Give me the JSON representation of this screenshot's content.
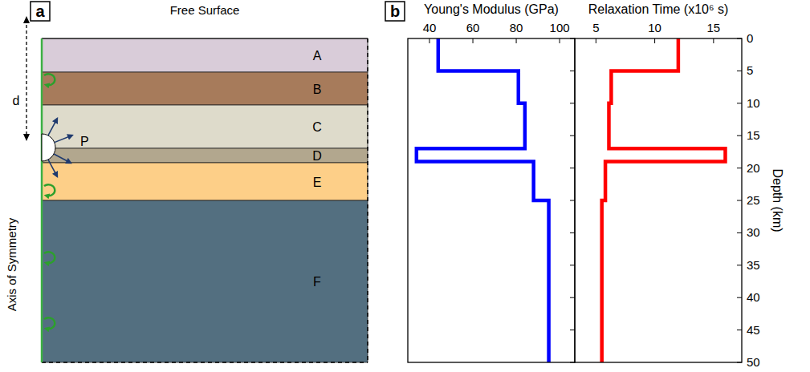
{
  "panel_labels": [
    "a",
    "b"
  ],
  "diagram": {
    "top_label": "Free Surface",
    "depth_label": "d",
    "source_label": "P",
    "axis_label": "Axis of Symmetry",
    "layers": [
      {
        "label": "A",
        "color": "#d9ccd9"
      },
      {
        "label": "B",
        "color": "#a77b5b"
      },
      {
        "label": "C",
        "color": "#dedbcb"
      },
      {
        "label": "D",
        "color": "#b2a78e"
      },
      {
        "label": "E",
        "color": "#fdcf88"
      },
      {
        "label": "F",
        "color": "#536f80"
      }
    ]
  },
  "chart_data": [
    {
      "type": "line",
      "xlabel": "Young's Modulus (GPa)",
      "x": [
        44,
        44,
        81,
        81,
        84,
        84,
        34,
        34,
        88,
        88,
        95,
        95
      ],
      "series": [
        {
          "color": "#0000ff",
          "values": [
            0,
            5,
            5,
            10,
            10,
            17,
            17,
            19,
            19,
            25,
            25,
            50
          ]
        }
      ],
      "xlim": [
        30,
        107
      ],
      "xticks": [
        40,
        60,
        80,
        100
      ],
      "ylim": [
        50,
        0
      ],
      "yticks": [
        0,
        5,
        10,
        15,
        20,
        25,
        30,
        35,
        40,
        45,
        50
      ],
      "tick_labels": "x"
    },
    {
      "type": "line",
      "xlabel": "Relaxation Time (x10⁶ s)",
      "ylabel": "Depth (km)",
      "x": [
        12,
        12,
        6.3,
        6.3,
        6.1,
        6.1,
        16,
        16,
        5.8,
        5.8,
        5.5,
        5.5
      ],
      "series": [
        {
          "color": "#ff0000",
          "values": [
            0,
            5,
            5,
            10,
            10,
            17,
            17,
            19,
            19,
            25,
            25,
            50
          ]
        }
      ],
      "xlim": [
        3.2,
        17.4
      ],
      "xticks": [
        5,
        10,
        15
      ],
      "ylim": [
        50,
        0
      ],
      "yticks": [
        0,
        5,
        10,
        15,
        20,
        25,
        30,
        35,
        40,
        45,
        50
      ],
      "tick_labels": true
    }
  ]
}
